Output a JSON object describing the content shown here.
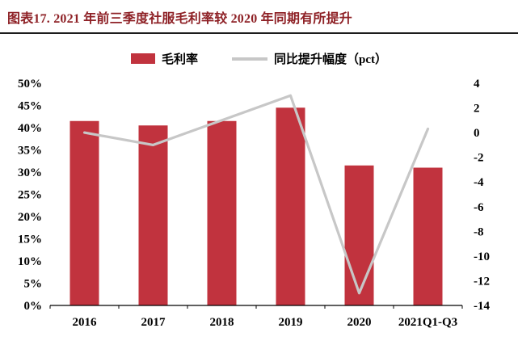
{
  "header": {
    "title": "图表17.  2021 年前三季度社服毛利率较 2020 年同期有所提升"
  },
  "legend": {
    "bar_label": "毛利率",
    "line_label": "同比提升幅度（pct）"
  },
  "chart_data": {
    "type": "bar+line combo",
    "title": "2021 年前三季度社服毛利率较 2020 年同期有所提升",
    "categories": [
      "2016",
      "2017",
      "2018",
      "2019",
      "2020",
      "2021Q1-Q3"
    ],
    "series": [
      {
        "name": "毛利率",
        "type": "bar",
        "axis": "left",
        "values": [
          41.5,
          40.5,
          41.5,
          44.5,
          31.5,
          31.0
        ]
      },
      {
        "name": "同比提升幅度（pct）",
        "type": "line",
        "axis": "right",
        "values": [
          0,
          -1,
          1,
          3,
          -13,
          0.3
        ]
      }
    ],
    "left_axis": {
      "min": 0,
      "max": 50,
      "step": 5,
      "format": "percent"
    },
    "right_axis": {
      "min": -14,
      "max": 4,
      "step": 2
    },
    "grid": "off",
    "legend_position": "top-center",
    "colors": {
      "bar": "#c1333e",
      "line": "#c7c7c7",
      "axis": "#000000"
    }
  }
}
